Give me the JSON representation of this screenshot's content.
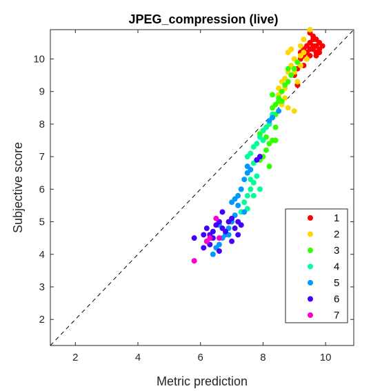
{
  "chart_data": {
    "type": "scatter",
    "title": "JPEG_compression (live)",
    "xlabel": "Metric prediction",
    "ylabel": "Subjective score",
    "xlim": [
      1.2,
      10.9
    ],
    "ylim": [
      1.2,
      10.9
    ],
    "xticks": [
      "2",
      "4",
      "6",
      "8",
      "10"
    ],
    "yticks": [
      "2",
      "3",
      "4",
      "5",
      "6",
      "7",
      "8",
      "9",
      "10"
    ],
    "grid": false,
    "legend_position": "lower-right",
    "reference_line": "identity, dashed",
    "series": [
      {
        "name": "1",
        "color": "#ff0000",
        "points": [
          [
            9.3,
            10.3
          ],
          [
            9.4,
            10.4
          ],
          [
            9.5,
            10.5
          ],
          [
            9.6,
            10.3
          ],
          [
            9.7,
            10.4
          ],
          [
            9.8,
            10.5
          ],
          [
            9.6,
            10.6
          ],
          [
            9.7,
            10.2
          ],
          [
            9.5,
            10.1
          ],
          [
            9.4,
            10.0
          ],
          [
            9.8,
            10.3
          ],
          [
            9.9,
            10.4
          ],
          [
            9.6,
            10.7
          ],
          [
            9.5,
            10.8
          ],
          [
            9.2,
            10.0
          ],
          [
            9.3,
            9.8
          ],
          [
            9.1,
            9.7
          ],
          [
            9.0,
            9.5
          ],
          [
            9.2,
            10.2
          ],
          [
            9.4,
            10.2
          ],
          [
            9.7,
            10.6
          ],
          [
            9.8,
            10.2
          ],
          [
            9.6,
            10.4
          ],
          [
            9.3,
            10.1
          ],
          [
            9.1,
            9.2
          ],
          [
            9.5,
            10.3
          ],
          [
            9.7,
            10.1
          ]
        ]
      },
      {
        "name": "2",
        "color": "#ffd700",
        "points": [
          [
            9.5,
            10.9
          ],
          [
            9.3,
            10.6
          ],
          [
            9.2,
            10.4
          ],
          [
            8.9,
            10.3
          ],
          [
            8.8,
            10.2
          ],
          [
            9.0,
            10.0
          ],
          [
            9.1,
            9.9
          ],
          [
            8.9,
            9.8
          ],
          [
            8.8,
            9.6
          ],
          [
            9.0,
            9.6
          ],
          [
            9.3,
            10.2
          ],
          [
            8.7,
            9.4
          ],
          [
            8.6,
            9.3
          ],
          [
            8.5,
            9.1
          ],
          [
            8.6,
            9.0
          ],
          [
            8.5,
            8.9
          ],
          [
            8.7,
            8.8
          ],
          [
            8.6,
            8.6
          ],
          [
            8.8,
            8.5
          ],
          [
            9.0,
            8.4
          ],
          [
            9.2,
            9.8
          ],
          [
            9.1,
            9.3
          ],
          [
            8.7,
            9.1
          ],
          [
            9.4,
            10.0
          ],
          [
            9.2,
            10.1
          ]
        ]
      },
      {
        "name": "3",
        "color": "#33ff00",
        "points": [
          [
            9.1,
            9.9
          ],
          [
            9.0,
            9.7
          ],
          [
            8.9,
            9.5
          ],
          [
            8.8,
            9.3
          ],
          [
            8.7,
            9.2
          ],
          [
            8.6,
            9.0
          ],
          [
            8.5,
            8.8
          ],
          [
            8.4,
            8.6
          ],
          [
            8.3,
            8.5
          ],
          [
            8.5,
            8.7
          ],
          [
            8.4,
            8.3
          ],
          [
            8.3,
            8.2
          ],
          [
            8.2,
            8.0
          ],
          [
            8.1,
            7.9
          ],
          [
            8.0,
            7.8
          ],
          [
            7.9,
            7.7
          ],
          [
            8.3,
            7.5
          ],
          [
            8.2,
            7.4
          ],
          [
            8.4,
            7.5
          ],
          [
            8.1,
            7.2
          ],
          [
            8.0,
            7.0
          ],
          [
            7.9,
            6.9
          ],
          [
            8.2,
            6.7
          ],
          [
            8.1,
            7.6
          ],
          [
            8.4,
            7.9
          ],
          [
            8.6,
            8.7
          ],
          [
            8.3,
            8.9
          ],
          [
            8.8,
            9.7
          ]
        ]
      },
      {
        "name": "4",
        "color": "#00ff99",
        "points": [
          [
            8.3,
            8.3
          ],
          [
            8.2,
            8.0
          ],
          [
            8.1,
            7.9
          ],
          [
            8.0,
            7.8
          ],
          [
            7.9,
            7.6
          ],
          [
            7.8,
            7.4
          ],
          [
            7.7,
            7.3
          ],
          [
            7.6,
            7.1
          ],
          [
            7.5,
            7.0
          ],
          [
            7.8,
            6.9
          ],
          [
            7.7,
            6.8
          ],
          [
            7.6,
            6.6
          ],
          [
            7.8,
            6.4
          ],
          [
            7.7,
            6.2
          ],
          [
            7.6,
            6.0
          ],
          [
            7.5,
            5.8
          ],
          [
            7.4,
            5.6
          ],
          [
            7.5,
            5.4
          ],
          [
            7.3,
            5.3
          ],
          [
            7.9,
            6.0
          ],
          [
            7.7,
            5.8
          ],
          [
            8.0,
            7.5
          ],
          [
            7.6,
            6.3
          ]
        ]
      },
      {
        "name": "5",
        "color": "#0099ff",
        "points": [
          [
            8.5,
            8.4
          ],
          [
            8.3,
            8.2
          ],
          [
            8.2,
            8.1
          ],
          [
            7.6,
            6.6
          ],
          [
            7.5,
            6.5
          ],
          [
            7.4,
            6.3
          ],
          [
            7.3,
            6.0
          ],
          [
            7.2,
            5.8
          ],
          [
            7.1,
            5.7
          ],
          [
            7.0,
            5.6
          ],
          [
            7.2,
            5.5
          ],
          [
            7.1,
            5.2
          ],
          [
            7.0,
            5.0
          ],
          [
            6.9,
            4.8
          ],
          [
            6.8,
            4.6
          ],
          [
            6.7,
            4.5
          ],
          [
            6.6,
            4.3
          ],
          [
            6.5,
            4.2
          ],
          [
            6.4,
            4.0
          ],
          [
            6.6,
            4.9
          ],
          [
            6.9,
            4.6
          ],
          [
            7.5,
            6.7
          ],
          [
            7.4,
            5.3
          ]
        ]
      },
      {
        "name": "6",
        "color": "#4400ff",
        "points": [
          [
            7.9,
            7.0
          ],
          [
            7.8,
            6.9
          ],
          [
            5.8,
            4.5
          ],
          [
            6.1,
            4.2
          ],
          [
            6.2,
            4.4
          ],
          [
            6.3,
            4.6
          ],
          [
            6.2,
            4.8
          ],
          [
            6.4,
            4.7
          ],
          [
            6.5,
            4.9
          ],
          [
            6.7,
            5.3
          ],
          [
            6.6,
            5.0
          ],
          [
            6.8,
            4.7
          ],
          [
            7.0,
            5.1
          ],
          [
            7.1,
            4.8
          ],
          [
            7.2,
            4.6
          ],
          [
            7.3,
            4.9
          ],
          [
            7.0,
            4.4
          ],
          [
            6.6,
            4.1
          ],
          [
            6.3,
            4.3
          ],
          [
            6.4,
            4.5
          ],
          [
            6.7,
            4.8
          ],
          [
            6.9,
            5.0
          ],
          [
            7.2,
            5.0
          ],
          [
            6.1,
            4.6
          ]
        ]
      },
      {
        "name": "7",
        "color": "#ff00cc",
        "points": [
          [
            5.8,
            3.8
          ],
          [
            6.3,
            4.5
          ],
          [
            6.5,
            5.1
          ],
          [
            6.6,
            4.5
          ],
          [
            6.2,
            4.4
          ]
        ]
      }
    ]
  }
}
